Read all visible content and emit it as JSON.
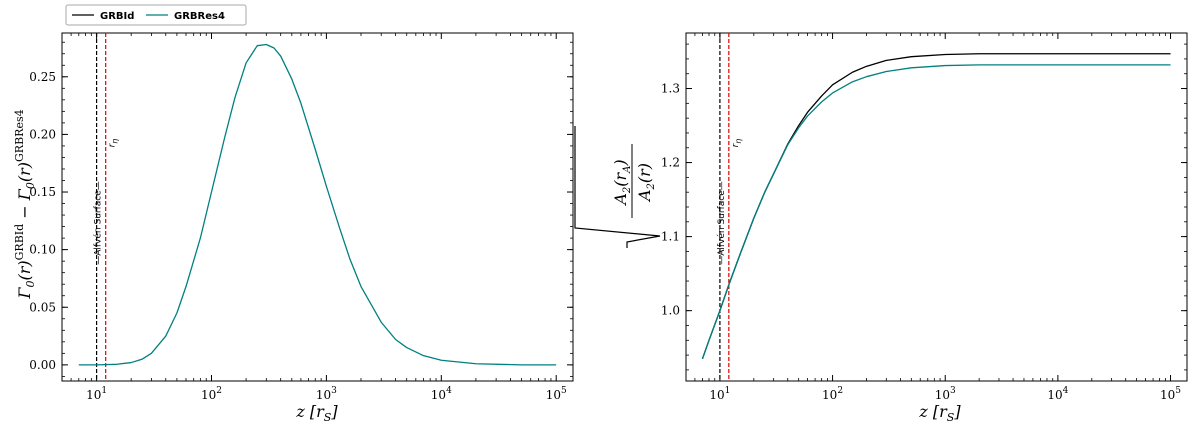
{
  "legend": {
    "entries": [
      {
        "label": "GRBId",
        "color": "#000000"
      },
      {
        "label": "GRBRes4",
        "color": "#008080"
      }
    ]
  },
  "chart_data": [
    {
      "type": "line",
      "xscale": "log",
      "xlabel": "z [r_S]",
      "ylabel": "Γ0(r)^GRBId − Γ0(r)^GRBRes4",
      "xlim": [
        5,
        140000
      ],
      "ylim": [
        -0.014,
        0.288
      ],
      "xticks": [
        {
          "label_base": "10",
          "label_exp": "1",
          "value": 10
        },
        {
          "label_base": "10",
          "label_exp": "2",
          "value": 100
        },
        {
          "label_base": "10",
          "label_exp": "3",
          "value": 1000
        },
        {
          "label_base": "10",
          "label_exp": "4",
          "value": 10000
        },
        {
          "label_base": "10",
          "label_exp": "5",
          "value": 100000
        }
      ],
      "yticks": [
        {
          "label": "0.00",
          "value": 0.0
        },
        {
          "label": "0.05",
          "value": 0.05
        },
        {
          "label": "0.10",
          "value": 0.1
        },
        {
          "label": "0.15",
          "value": 0.15
        },
        {
          "label": "0.20",
          "value": 0.2
        },
        {
          "label": "0.25",
          "value": 0.25
        }
      ],
      "series": [
        {
          "name": "GRBRes4",
          "color": "#008080",
          "x": [
            7,
            10,
            15,
            20,
            25,
            30,
            40,
            50,
            60,
            80,
            100,
            130,
            160,
            200,
            250,
            300,
            350,
            400,
            500,
            600,
            800,
            1000,
            1300,
            1600,
            2000,
            3000,
            4000,
            5000,
            7000,
            10000,
            20000,
            50000,
            100000
          ],
          "y": [
            0.0,
            0.0,
            0.0005,
            0.002,
            0.005,
            0.01,
            0.025,
            0.045,
            0.068,
            0.11,
            0.15,
            0.197,
            0.232,
            0.262,
            0.277,
            0.278,
            0.275,
            0.268,
            0.248,
            0.227,
            0.187,
            0.155,
            0.119,
            0.092,
            0.068,
            0.037,
            0.022,
            0.015,
            0.008,
            0.004,
            0.001,
            0.0,
            0.0
          ]
        }
      ],
      "vlines": [
        {
          "x": 10,
          "color": "#000000",
          "label": "Alfvén Surface"
        },
        {
          "x": 12,
          "color": "#e00000",
          "label": "r_η"
        }
      ]
    },
    {
      "type": "line",
      "xscale": "log",
      "xlabel": "z [r_S]",
      "ylabel": "sqrt(A2(rA)/A2(r))",
      "xlim": [
        5,
        140000
      ],
      "ylim": [
        0.905,
        1.375
      ],
      "xticks": [
        {
          "label_base": "10",
          "label_exp": "1",
          "value": 10
        },
        {
          "label_base": "10",
          "label_exp": "2",
          "value": 100
        },
        {
          "label_base": "10",
          "label_exp": "3",
          "value": 1000
        },
        {
          "label_base": "10",
          "label_exp": "4",
          "value": 10000
        },
        {
          "label_base": "10",
          "label_exp": "5",
          "value": 100000
        }
      ],
      "yticks": [
        {
          "label": "1.0",
          "value": 1.0
        },
        {
          "label": "1.1",
          "value": 1.1
        },
        {
          "label": "1.2",
          "value": 1.2
        },
        {
          "label": "1.3",
          "value": 1.3
        }
      ],
      "series": [
        {
          "name": "GRBId",
          "color": "#000000",
          "x": [
            7,
            8,
            10,
            12,
            15,
            20,
            25,
            30,
            40,
            50,
            60,
            80,
            100,
            150,
            200,
            300,
            500,
            1000,
            2000,
            5000,
            10000,
            100000
          ],
          "y": [
            0.935,
            0.96,
            1.0,
            1.035,
            1.075,
            1.125,
            1.16,
            1.185,
            1.225,
            1.25,
            1.268,
            1.29,
            1.305,
            1.322,
            1.33,
            1.338,
            1.343,
            1.346,
            1.347,
            1.347,
            1.347,
            1.347
          ]
        },
        {
          "name": "GRBRes4",
          "color": "#008080",
          "x": [
            7,
            8,
            10,
            12,
            15,
            20,
            25,
            30,
            40,
            50,
            60,
            80,
            100,
            150,
            200,
            300,
            500,
            1000,
            2000,
            5000,
            10000,
            100000
          ],
          "y": [
            0.935,
            0.96,
            1.0,
            1.035,
            1.075,
            1.125,
            1.16,
            1.185,
            1.224,
            1.247,
            1.263,
            1.282,
            1.294,
            1.309,
            1.316,
            1.323,
            1.328,
            1.331,
            1.332,
            1.332,
            1.332,
            1.332
          ]
        }
      ],
      "vlines": [
        {
          "x": 10,
          "color": "#000000",
          "label": "Alfvén Surface"
        },
        {
          "x": 12,
          "color": "#e00000",
          "label": "r_η"
        }
      ]
    }
  ]
}
